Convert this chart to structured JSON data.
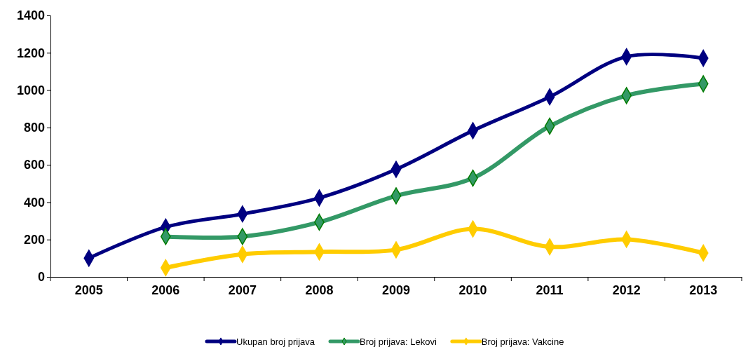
{
  "chart_data": {
    "type": "line",
    "categories": [
      "2005",
      "2006",
      "2007",
      "2008",
      "2009",
      "2010",
      "2011",
      "2012",
      "2013"
    ],
    "series": [
      {
        "name": "Ukupan broj prijava",
        "color": "#000080",
        "values": [
          100,
          267,
          337,
          423,
          576,
          783,
          964,
          1179,
          1171
        ]
      },
      {
        "name": "Broj prijava: Lekovi",
        "color": "#339966",
        "values": [
          null,
          216,
          216,
          293,
          434,
          529,
          807,
          971,
          1034
        ]
      },
      {
        "name": "Broj prijava: Vakcine",
        "color": "#ffcc00",
        "values": [
          null,
          49,
          121,
          134,
          145,
          257,
          161,
          201,
          128
        ]
      }
    ],
    "ylim": [
      0,
      1400
    ],
    "yticks": [
      0,
      200,
      400,
      600,
      800,
      1000,
      1200,
      1400
    ],
    "grid": false,
    "legend": "bottom",
    "marker": "diamond",
    "line_style": "solid"
  }
}
